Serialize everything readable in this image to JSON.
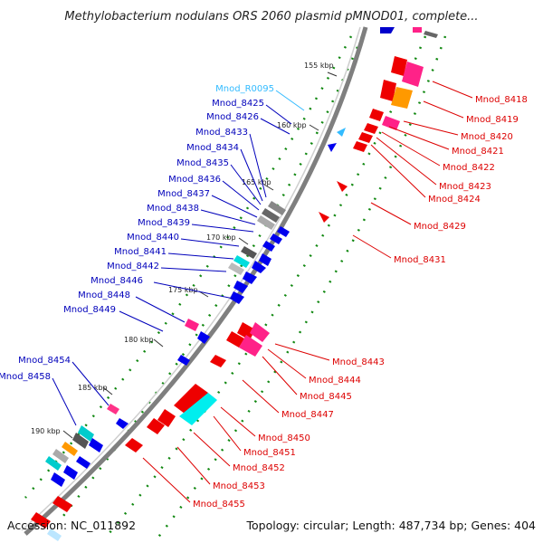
{
  "title": "Methylobacterium nodulans ORS 2060 plasmid pMNOD01, complete...",
  "footer": {
    "accession": "Accession: NC_011892",
    "summary": "Topology: circular; Length: 487,734 bp; Genes: 404"
  },
  "colors": {
    "backbone": "#7f7f7f",
    "forward_label": "#dd0000",
    "reverse_label": "#0000bb",
    "rna_label": "#33bbff",
    "gc_dots": "#118811"
  },
  "ticks": [
    "155 kbp",
    "160 kbp",
    "165 kbp",
    "170 kbp",
    "175 kbp",
    "180 kbp",
    "185 kbp",
    "190 kbp"
  ],
  "genes_reverse": [
    "Mnod_R0095",
    "Mnod_8425",
    "Mnod_8426",
    "Mnod_8433",
    "Mnod_8434",
    "Mnod_8435",
    "Mnod_8436",
    "Mnod_8437",
    "Mnod_8438",
    "Mnod_8439",
    "Mnod_8440",
    "Mnod_8441",
    "Mnod_8442",
    "Mnod_8446",
    "Mnod_8448",
    "Mnod_8449",
    "Mnod_8454",
    "Mnod_8458"
  ],
  "genes_forward": [
    "Mnod_8418",
    "Mnod_8419",
    "Mnod_8420",
    "Mnod_8421",
    "Mnod_8422",
    "Mnod_8423",
    "Mnod_8424",
    "Mnod_8429",
    "Mnod_8431",
    "Mnod_8443",
    "Mnod_8444",
    "Mnod_8445",
    "Mnod_8447",
    "Mnod_8450",
    "Mnod_8451",
    "Mnod_8452",
    "Mnod_8453",
    "Mnod_8455"
  ]
}
